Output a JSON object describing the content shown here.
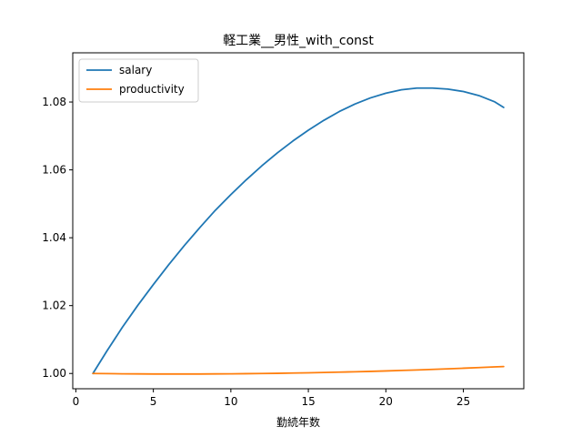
{
  "chart_data": {
    "type": "line",
    "title": "軽工業__男性_with_const",
    "xlabel": "勤続年数",
    "ylabel": "",
    "xlim": [
      -0.2,
      28.9
    ],
    "ylim": [
      0.9955,
      1.0945
    ],
    "xticks": [
      0,
      5,
      10,
      15,
      20,
      25
    ],
    "yticks": [
      1.0,
      1.02,
      1.04,
      1.06,
      1.08
    ],
    "xtick_labels": [
      "0",
      "5",
      "10",
      "15",
      "20",
      "25"
    ],
    "ytick_labels": [
      "1.00",
      "1.02",
      "1.04",
      "1.06",
      "1.08"
    ],
    "grid": false,
    "legend_position": "top-left",
    "x": [
      1.1,
      2,
      3,
      4,
      5,
      6,
      7,
      8,
      9,
      10,
      11,
      12,
      13,
      14,
      15,
      16,
      17,
      18,
      19,
      20,
      21,
      22,
      23,
      24,
      25,
      26,
      27,
      27.6
    ],
    "series": [
      {
        "name": "salary",
        "color": "#1f77b4",
        "values": [
          1.0,
          1.0066,
          1.0136,
          1.0201,
          1.0262,
          1.0321,
          1.0377,
          1.043,
          1.0481,
          1.0527,
          1.0571,
          1.0612,
          1.065,
          1.0685,
          1.0717,
          1.0746,
          1.0772,
          1.0794,
          1.0812,
          1.0826,
          1.0836,
          1.0841,
          1.0841,
          1.0838,
          1.0831,
          1.0819,
          1.0801,
          1.0784
        ]
      },
      {
        "name": "productivity",
        "color": "#ff7f0e",
        "values": [
          1.0,
          0.99995,
          0.9999,
          0.99987,
          0.99985,
          0.99984,
          0.99984,
          0.99985,
          0.99987,
          0.9999,
          0.99994,
          0.99999,
          1.00005,
          1.00012,
          1.0002,
          1.00029,
          1.00039,
          1.0005,
          1.00062,
          1.00075,
          1.00089,
          1.00104,
          1.0012,
          1.00137,
          1.00155,
          1.00174,
          1.00194,
          1.00205
        ]
      }
    ]
  }
}
